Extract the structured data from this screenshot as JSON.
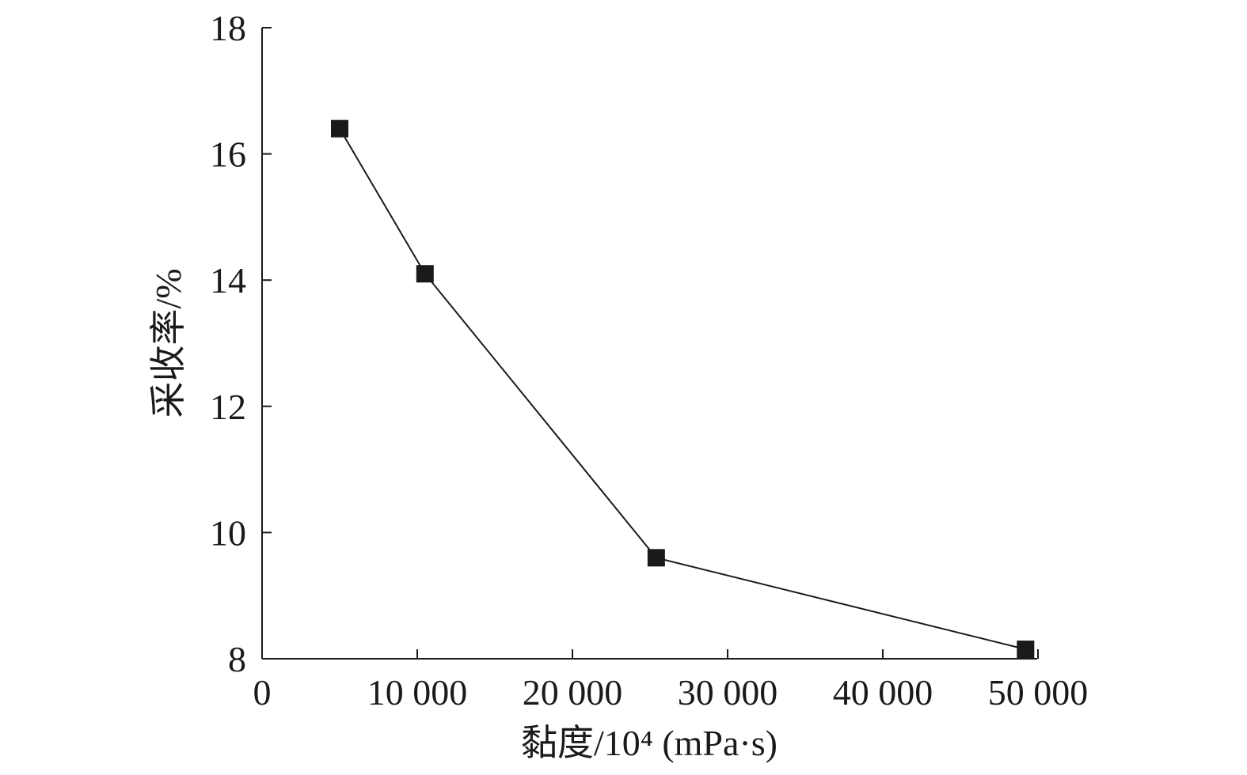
{
  "chart_data": {
    "type": "line",
    "title": "",
    "xlabel": "黏度/10⁴ (mPa·s)",
    "ylabel": "采收率/%",
    "x_ticks": [
      "0",
      "10 000",
      "20 000",
      "30 000",
      "40 000",
      "50 000"
    ],
    "y_ticks": [
      "8",
      "10",
      "12",
      "14",
      "16",
      "18"
    ],
    "xlim": [
      0,
      50000
    ],
    "ylim": [
      8,
      18
    ],
    "grid": false,
    "legend": "none",
    "marker": "square",
    "line_color": "#1a1a1a",
    "marker_color": "#1a1a1a",
    "series": [
      {
        "x": [
          5000,
          10500,
          25400,
          49200
        ],
        "y": [
          16.4,
          14.1,
          9.6,
          8.15
        ]
      }
    ]
  }
}
